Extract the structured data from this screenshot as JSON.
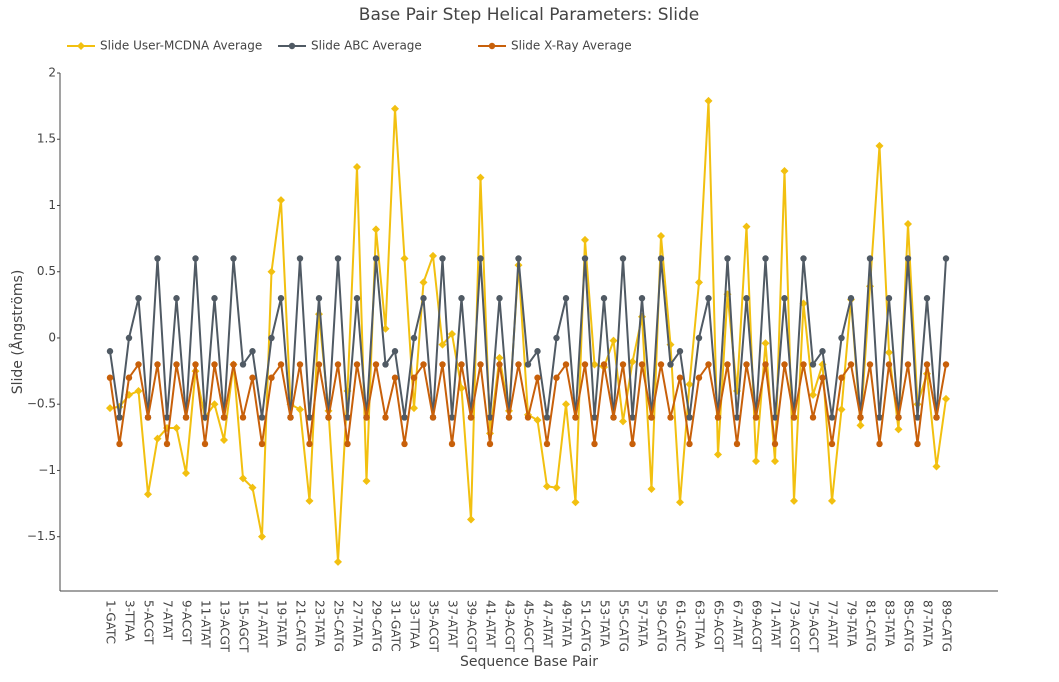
{
  "chart_data": {
    "type": "line",
    "title": "Base Pair Step Helical Parameters: Slide",
    "x_label": "Sequence Base Pair",
    "y_label": "Slide (Ångströms)",
    "categories": [
      "1-GATC",
      null,
      "3-TTAA",
      null,
      "5-ACGT",
      null,
      "7-ATAT",
      null,
      "9-ACGT",
      null,
      "11-ATAT",
      null,
      "13-ACGT",
      null,
      "15-AGCT",
      null,
      "17-ATAT",
      null,
      "19-TATA",
      null,
      "21-CATG",
      null,
      "23-TATA",
      null,
      "25-CATG",
      null,
      "27-TATA",
      null,
      "29-CATG",
      null,
      "31-GATC",
      null,
      "33-TTAA",
      null,
      "35-ACGT",
      null,
      "37-ATAT",
      null,
      "39-ACGT",
      null,
      "41-ATAT",
      null,
      "43-ACGT",
      null,
      "45-AGCT",
      null,
      "47-ATAT",
      null,
      "49-TATA",
      null,
      "51-CATG",
      null,
      "53-TATA",
      null,
      "55-CATG",
      null,
      "57-TATA",
      null,
      "59-CATG",
      null,
      "61-GATC",
      null,
      "63-TTAA",
      null,
      "65-ACGT",
      null,
      "67-ATAT",
      null,
      "69-ACGT",
      null,
      "71-ATAT",
      null,
      "73-ACGT",
      null,
      "75-AGCT",
      null,
      "77-ATAT",
      null,
      "79-TATA",
      null,
      "81-CATG",
      null,
      "83-TATA",
      null,
      "85-CATG",
      null,
      "87-TATA",
      null,
      "89-CATG"
    ],
    "series": [
      {
        "name": "Slide User-MCDNA Average",
        "color": "#f2c010",
        "marker": "diamond",
        "values": [
          -0.53,
          -0.52,
          -0.43,
          -0.4,
          -1.18,
          -0.76,
          -0.68,
          -0.68,
          -1.02,
          -0.25,
          -0.6,
          -0.5,
          -0.77,
          -0.2,
          -1.06,
          -1.13,
          -1.5,
          0.5,
          1.04,
          -0.5,
          -0.54,
          -1.23,
          0.18,
          -0.55,
          -1.69,
          -0.4,
          1.29,
          -1.08,
          0.82,
          0.07,
          1.73,
          0.6,
          -0.53,
          0.42,
          0.62,
          -0.05,
          0.03,
          -0.38,
          -1.37,
          1.21,
          -0.72,
          -0.15,
          -0.55,
          0.55,
          -0.58,
          -0.62,
          -1.12,
          -1.13,
          -0.5,
          -1.24,
          0.74,
          -0.2,
          -0.22,
          -0.02,
          -0.63,
          -0.18,
          0.16,
          -1.14,
          0.77,
          -0.05,
          -1.24,
          -0.35,
          0.42,
          1.79,
          -0.88,
          0.33,
          -0.4,
          0.84,
          -0.93,
          -0.04,
          -0.93,
          1.26,
          -1.23,
          0.26,
          -0.43,
          -0.2,
          -1.23,
          -0.54,
          0.29,
          -0.66,
          0.39,
          1.45,
          -0.11,
          -0.69,
          0.86,
          -0.5,
          -0.27,
          -0.97,
          -0.46
        ]
      },
      {
        "name": "Slide ABC Average",
        "color": "#505a64",
        "marker": "circle",
        "values": [
          -0.1,
          -0.6,
          0,
          0.3,
          -0.6,
          0.6,
          -0.6,
          0.3,
          -0.6,
          0.6,
          -0.6,
          0.3,
          -0.6,
          0.6,
          -0.2,
          -0.1,
          -0.6,
          0,
          0.3,
          -0.6,
          0.6,
          -0.6,
          0.3,
          -0.6,
          0.6,
          -0.6,
          0.3,
          -0.6,
          0.6,
          -0.2,
          -0.1,
          -0.6,
          0,
          0.3,
          -0.6,
          0.6,
          -0.6,
          0.3,
          -0.6,
          0.6,
          -0.6,
          0.3,
          -0.6,
          0.6,
          -0.2,
          -0.1,
          -0.6,
          0,
          0.3,
          -0.6,
          0.6,
          -0.6,
          0.3,
          -0.6,
          0.6,
          -0.6,
          0.3,
          -0.6,
          0.6,
          -0.2,
          -0.1,
          -0.6,
          0,
          0.3,
          -0.6,
          0.6,
          -0.6,
          0.3,
          -0.6,
          0.6,
          -0.6,
          0.3,
          -0.6,
          0.6,
          -0.2,
          -0.1,
          -0.6,
          0,
          0.3,
          -0.6,
          0.6,
          -0.6,
          0.3,
          -0.6,
          0.6,
          -0.6,
          0.3,
          -0.6,
          0.6
        ]
      },
      {
        "name": "Slide X-Ray Average",
        "color": "#c8600a",
        "marker": "circle",
        "values": [
          -0.3,
          -0.8,
          -0.3,
          -0.2,
          -0.6,
          -0.2,
          -0.8,
          -0.2,
          -0.6,
          -0.2,
          -0.8,
          -0.2,
          -0.6,
          -0.2,
          -0.6,
          -0.3,
          -0.8,
          -0.3,
          -0.2,
          -0.6,
          -0.2,
          -0.8,
          -0.2,
          -0.6,
          -0.2,
          -0.8,
          -0.2,
          -0.6,
          -0.2,
          -0.6,
          -0.3,
          -0.8,
          -0.3,
          -0.2,
          -0.6,
          -0.2,
          -0.8,
          -0.2,
          -0.6,
          -0.2,
          -0.8,
          -0.2,
          -0.6,
          -0.2,
          -0.6,
          -0.3,
          -0.8,
          -0.3,
          -0.2,
          -0.6,
          -0.2,
          -0.8,
          -0.2,
          -0.6,
          -0.2,
          -0.8,
          -0.2,
          -0.6,
          -0.2,
          -0.6,
          -0.3,
          -0.8,
          -0.3,
          -0.2,
          -0.6,
          -0.2,
          -0.8,
          -0.2,
          -0.6,
          -0.2,
          -0.8,
          -0.2,
          -0.6,
          -0.2,
          -0.6,
          -0.3,
          -0.8,
          -0.3,
          -0.2,
          -0.6,
          -0.2,
          -0.8,
          -0.2,
          -0.6,
          -0.2,
          -0.8,
          -0.2,
          -0.6,
          -0.2
        ]
      }
    ],
    "ylim": [
      -1.91,
      2
    ],
    "yticks": [
      {
        "value": -1.5,
        "label": "−1.5"
      },
      {
        "value": -1,
        "label": "−1"
      },
      {
        "value": -0.5,
        "label": "−0.5"
      },
      0,
      0.5,
      1,
      1.5,
      2
    ],
    "grid": false,
    "legend": "top"
  }
}
